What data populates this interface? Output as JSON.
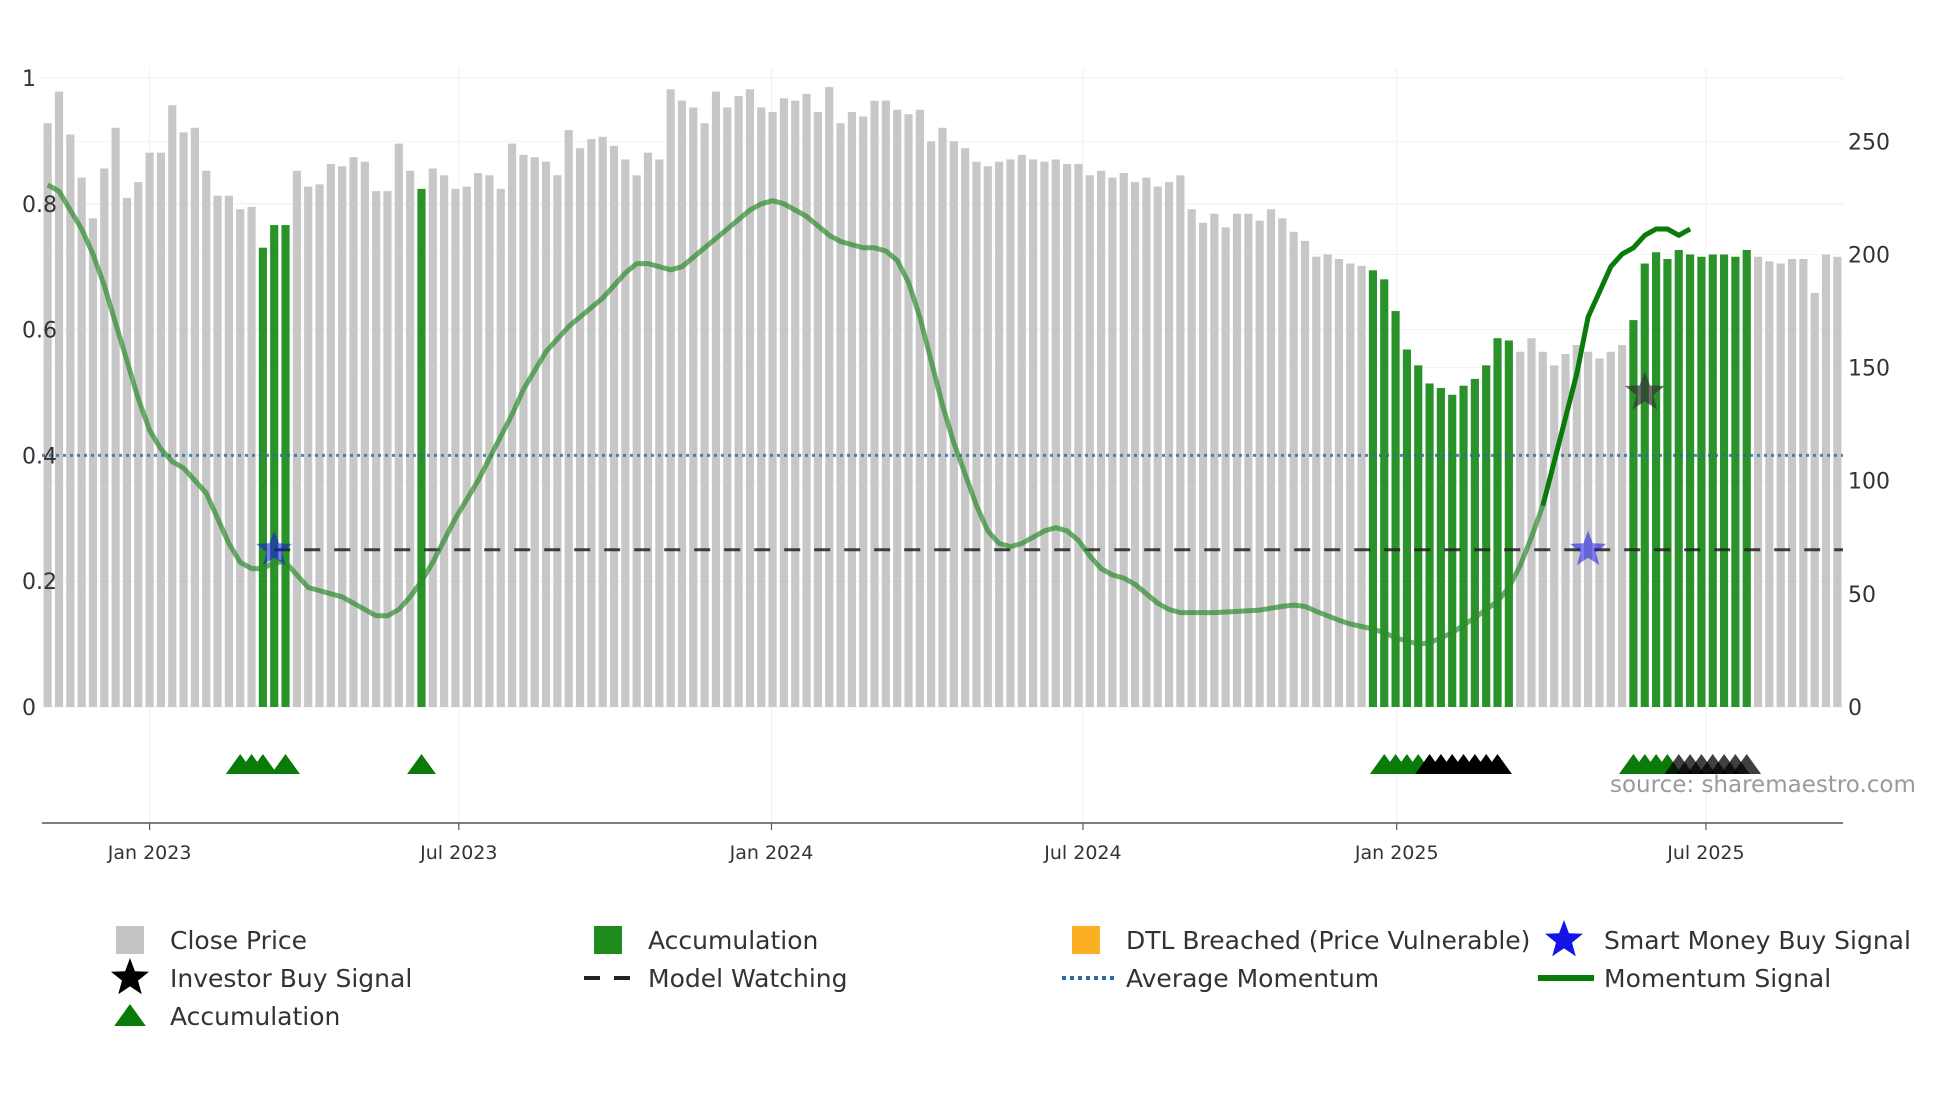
{
  "source": "source: sharemaestro.com",
  "colors": {
    "close_price": "#c4c4c4",
    "accumulation": "#1e8c1e",
    "dtl_breached": "#fbb024",
    "smart_money": "#1414e6",
    "investor": "#000000",
    "model_watching": "#222222",
    "average_momentum": "#2b6aa8",
    "momentum": "#2e8b2e",
    "momentum_recent": "#0a7a0a",
    "triangle_green": "#0a7a0a",
    "triangle_black": "#000000"
  },
  "chart_data": {
    "type": "bar",
    "x_ticks": [
      "Jan 2023",
      "Jul 2023",
      "Jan 2024",
      "Jul 2024",
      "Jan 2025",
      "Jul 2025"
    ],
    "x_tick_index": [
      9.5,
      36.8,
      64.4,
      91.9,
      119.6,
      146.9
    ],
    "y_left_ticks": [
      "0",
      "0.2",
      "0.4",
      "0.6",
      "0.8",
      "1"
    ],
    "y_left_range": [
      0,
      1
    ],
    "y_right_ticks": [
      "0",
      "50",
      "100",
      "150",
      "200",
      "250"
    ],
    "y_right_range": [
      0,
      278
    ],
    "close_prices": [
      258,
      272,
      253,
      234,
      216,
      238,
      256,
      225,
      232,
      245,
      245,
      266,
      254,
      256,
      237,
      226,
      226,
      220,
      221,
      203,
      213,
      213,
      237,
      230,
      231,
      240,
      239,
      243,
      241,
      228,
      228,
      249,
      237,
      229,
      238,
      235,
      229,
      230,
      236,
      235,
      229,
      249,
      244,
      243,
      241,
      235,
      255,
      247,
      251,
      252,
      248,
      242,
      235,
      245,
      242,
      273,
      268,
      265,
      258,
      272,
      265,
      270,
      273,
      265,
      263,
      269,
      268,
      271,
      263,
      274,
      258,
      263,
      261,
      268,
      268,
      264,
      262,
      264,
      250,
      256,
      250,
      247,
      241,
      239,
      241,
      242,
      244,
      242,
      241,
      242,
      240,
      240,
      235,
      237,
      234,
      236,
      232,
      234,
      230,
      232,
      235,
      220,
      214,
      218,
      212,
      218,
      218,
      215,
      220,
      216,
      210,
      206,
      199,
      200,
      198,
      196,
      195,
      193,
      189,
      175,
      158,
      151,
      143,
      141,
      138,
      142,
      145,
      151,
      163,
      162,
      157,
      163,
      157,
      151,
      156,
      160,
      157,
      154,
      157,
      160,
      171,
      196,
      201,
      198,
      202,
      200,
      199,
      200,
      200,
      199,
      202,
      199,
      197,
      196,
      198,
      198,
      183,
      200,
      199
    ],
    "accumulation_index": [
      19,
      20,
      21,
      33,
      117,
      118,
      119,
      120,
      121,
      122,
      123,
      124,
      125,
      126,
      127,
      128,
      129,
      140,
      141,
      142,
      143,
      144,
      145,
      146,
      147,
      148,
      149,
      150
    ],
    "momentum_signal": [
      [
        0,
        0.83
      ],
      [
        1,
        0.82
      ],
      [
        2,
        0.79
      ],
      [
        3,
        0.76
      ],
      [
        4,
        0.72
      ],
      [
        5,
        0.67
      ],
      [
        6,
        0.61
      ],
      [
        7,
        0.55
      ],
      [
        8,
        0.49
      ],
      [
        9,
        0.44
      ],
      [
        10,
        0.41
      ],
      [
        11,
        0.39
      ],
      [
        12,
        0.38
      ],
      [
        13,
        0.36
      ],
      [
        14,
        0.34
      ],
      [
        15,
        0.3
      ],
      [
        16,
        0.26
      ],
      [
        17,
        0.23
      ],
      [
        18,
        0.22
      ],
      [
        19,
        0.22
      ],
      [
        20,
        0.23
      ],
      [
        21,
        0.23
      ],
      [
        22,
        0.21
      ],
      [
        23,
        0.19
      ],
      [
        24,
        0.185
      ],
      [
        25,
        0.18
      ],
      [
        26,
        0.175
      ],
      [
        27,
        0.165
      ],
      [
        28,
        0.155
      ],
      [
        29,
        0.145
      ],
      [
        30,
        0.145
      ],
      [
        31,
        0.155
      ],
      [
        32,
        0.175
      ],
      [
        33,
        0.2
      ],
      [
        34,
        0.23
      ],
      [
        35,
        0.265
      ],
      [
        36,
        0.3
      ],
      [
        37,
        0.33
      ],
      [
        38,
        0.36
      ],
      [
        39,
        0.395
      ],
      [
        40,
        0.43
      ],
      [
        41,
        0.465
      ],
      [
        42,
        0.505
      ],
      [
        43,
        0.535
      ],
      [
        44,
        0.565
      ],
      [
        45,
        0.585
      ],
      [
        46,
        0.605
      ],
      [
        47,
        0.62
      ],
      [
        48,
        0.635
      ],
      [
        49,
        0.65
      ],
      [
        50,
        0.67
      ],
      [
        51,
        0.69
      ],
      [
        52,
        0.705
      ],
      [
        53,
        0.705
      ],
      [
        54,
        0.7
      ],
      [
        55,
        0.695
      ],
      [
        56,
        0.7
      ],
      [
        57,
        0.715
      ],
      [
        58,
        0.73
      ],
      [
        59,
        0.745
      ],
      [
        60,
        0.76
      ],
      [
        61,
        0.775
      ],
      [
        62,
        0.79
      ],
      [
        63,
        0.8
      ],
      [
        64,
        0.805
      ],
      [
        65,
        0.8
      ],
      [
        66,
        0.79
      ],
      [
        67,
        0.78
      ],
      [
        68,
        0.765
      ],
      [
        69,
        0.75
      ],
      [
        70,
        0.74
      ],
      [
        71,
        0.735
      ],
      [
        72,
        0.73
      ],
      [
        73,
        0.73
      ],
      [
        74,
        0.725
      ],
      [
        75,
        0.71
      ],
      [
        76,
        0.675
      ],
      [
        77,
        0.62
      ],
      [
        78,
        0.55
      ],
      [
        79,
        0.48
      ],
      [
        80,
        0.42
      ],
      [
        81,
        0.37
      ],
      [
        82,
        0.32
      ],
      [
        83,
        0.28
      ],
      [
        84,
        0.26
      ],
      [
        85,
        0.255
      ],
      [
        86,
        0.26
      ],
      [
        87,
        0.27
      ],
      [
        88,
        0.28
      ],
      [
        89,
        0.285
      ],
      [
        90,
        0.28
      ],
      [
        91,
        0.265
      ],
      [
        92,
        0.24
      ],
      [
        93,
        0.22
      ],
      [
        94,
        0.21
      ],
      [
        95,
        0.205
      ],
      [
        96,
        0.195
      ],
      [
        97,
        0.18
      ],
      [
        98,
        0.165
      ],
      [
        99,
        0.155
      ],
      [
        100,
        0.15
      ],
      [
        101,
        0.15
      ],
      [
        102,
        0.15
      ],
      [
        103,
        0.15
      ],
      [
        104,
        0.151
      ],
      [
        105,
        0.152
      ],
      [
        106,
        0.153
      ],
      [
        107,
        0.154
      ],
      [
        108,
        0.157
      ],
      [
        109,
        0.16
      ],
      [
        110,
        0.162
      ],
      [
        111,
        0.16
      ],
      [
        112,
        0.152
      ],
      [
        113,
        0.145
      ],
      [
        114,
        0.138
      ],
      [
        115,
        0.132
      ],
      [
        116,
        0.128
      ],
      [
        117,
        0.124
      ],
      [
        118,
        0.118
      ],
      [
        119,
        0.11
      ],
      [
        120,
        0.105
      ],
      [
        121,
        0.1
      ],
      [
        122,
        0.102
      ],
      [
        123,
        0.11
      ],
      [
        124,
        0.118
      ],
      [
        125,
        0.13
      ],
      [
        126,
        0.142
      ],
      [
        127,
        0.155
      ],
      [
        128,
        0.168
      ],
      [
        129,
        0.19
      ],
      [
        130,
        0.225
      ],
      [
        131,
        0.27
      ],
      [
        132,
        0.32
      ]
    ],
    "momentum_signal_recent": [
      [
        132,
        0.32
      ],
      [
        133,
        0.39
      ],
      [
        134,
        0.46
      ],
      [
        135,
        0.53
      ],
      [
        136,
        0.62
      ],
      [
        137,
        0.66
      ],
      [
        138,
        0.7
      ],
      [
        139,
        0.72
      ],
      [
        140,
        0.73
      ],
      [
        141,
        0.75
      ],
      [
        142,
        0.76
      ],
      [
        143,
        0.76
      ],
      [
        144,
        0.75
      ],
      [
        145,
        0.76
      ]
    ],
    "average_momentum": 0.4,
    "model_watching": {
      "value": 0.25,
      "start_index": 20
    },
    "smart_money_signals": [
      [
        20,
        0.25
      ],
      [
        136,
        0.25
      ]
    ],
    "investor_signals": [
      [
        141,
        0.5
      ]
    ],
    "accumulation_triangles_green": [
      17,
      18,
      19,
      21,
      33,
      118,
      119,
      120,
      121,
      140,
      141,
      142,
      143
    ],
    "accumulation_triangles_black": [
      122,
      123,
      124,
      125,
      126,
      127,
      128,
      144,
      145,
      146,
      147,
      148,
      149,
      150
    ],
    "legend": [
      {
        "label": "Close Price",
        "marker": "square",
        "color_key": "close_price"
      },
      {
        "label": "Accumulation",
        "marker": "square",
        "color_key": "accumulation"
      },
      {
        "label": "DTL Breached (Price Vulnerable)",
        "marker": "square",
        "color_key": "dtl_breached"
      },
      {
        "label": "Smart Money Buy Signal",
        "marker": "star",
        "color_key": "smart_money"
      },
      {
        "label": "Investor Buy Signal",
        "marker": "star",
        "color_key": "investor"
      },
      {
        "label": "Model Watching",
        "marker": "dash",
        "color_key": "model_watching"
      },
      {
        "label": "Average Momentum",
        "marker": "dotted",
        "color_key": "average_momentum"
      },
      {
        "label": "Momentum Signal",
        "marker": "line",
        "color_key": "momentum_recent"
      },
      {
        "label": "Accumulation",
        "marker": "triangle",
        "color_key": "triangle_green"
      }
    ]
  }
}
